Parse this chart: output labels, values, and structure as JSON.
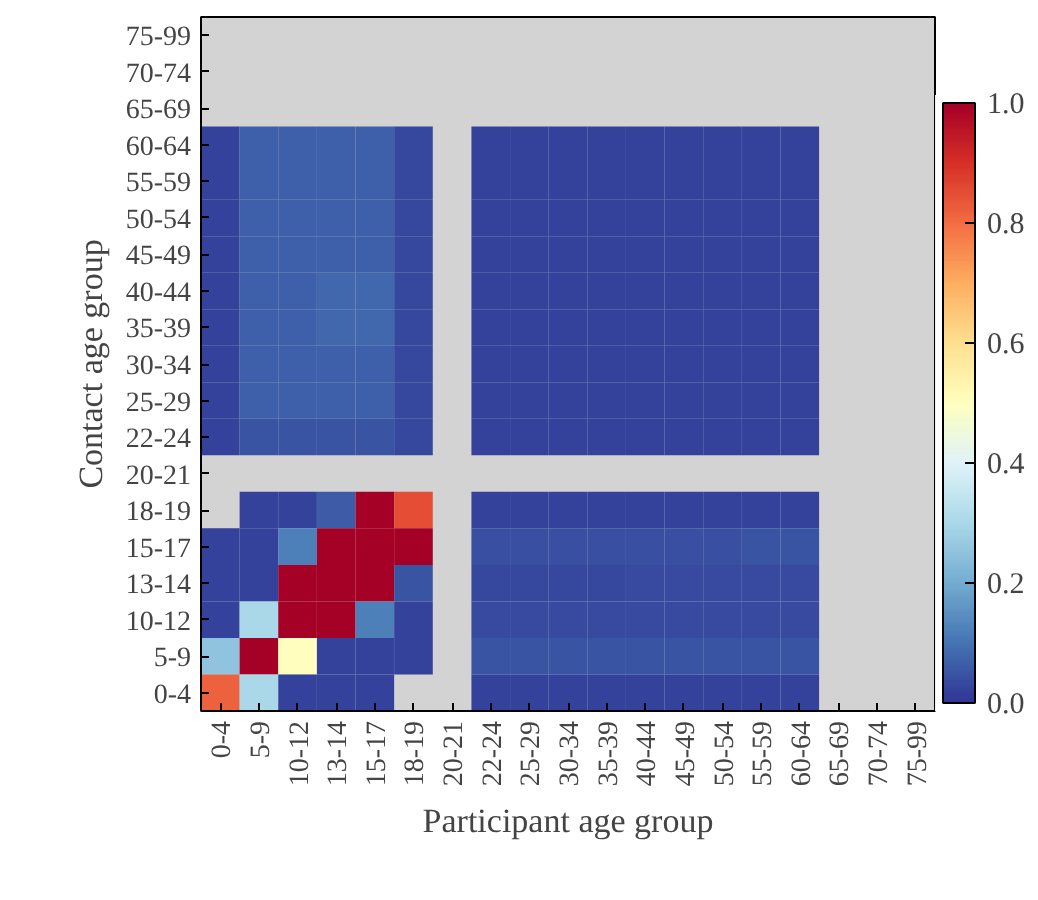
{
  "chart_data": {
    "type": "heatmap",
    "xlabel": "Participant age group",
    "ylabel": "Contact age group",
    "categories": [
      "0-4",
      "5-9",
      "10-12",
      "13-14",
      "15-17",
      "18-19",
      "20-21",
      "22-24",
      "25-29",
      "30-34",
      "35-39",
      "40-44",
      "45-49",
      "50-54",
      "55-59",
      "60-64",
      "65-69",
      "70-74",
      "75-99"
    ],
    "y_categories": [
      "75-99",
      "70-74",
      "65-69",
      "60-64",
      "55-59",
      "50-54",
      "45-49",
      "40-44",
      "35-39",
      "30-34",
      "25-29",
      "22-24",
      "20-21",
      "18-19",
      "15-17",
      "13-14",
      "10-12",
      "5-9",
      "0-4"
    ],
    "cells": [
      [
        null,
        null,
        null,
        null,
        null,
        null,
        null,
        null,
        null,
        null,
        null,
        null,
        null,
        null,
        null,
        null,
        null,
        null,
        null
      ],
      [
        null,
        null,
        null,
        null,
        null,
        null,
        null,
        null,
        null,
        null,
        null,
        null,
        null,
        null,
        null,
        null,
        null,
        null,
        null
      ],
      [
        null,
        null,
        null,
        null,
        null,
        null,
        null,
        null,
        null,
        null,
        null,
        null,
        null,
        null,
        null,
        null,
        null,
        null,
        null
      ],
      [
        0.02,
        0.07,
        0.07,
        0.07,
        0.07,
        0.03,
        null,
        0.02,
        0.02,
        0.02,
        0.02,
        0.02,
        0.02,
        0.02,
        0.02,
        0.02,
        null,
        null,
        null
      ],
      [
        0.02,
        0.07,
        0.07,
        0.07,
        0.07,
        0.03,
        null,
        0.02,
        0.02,
        0.02,
        0.02,
        0.02,
        0.02,
        0.02,
        0.02,
        0.02,
        null,
        null,
        null
      ],
      [
        0.02,
        0.07,
        0.07,
        0.07,
        0.07,
        0.03,
        null,
        0.02,
        0.02,
        0.02,
        0.02,
        0.02,
        0.02,
        0.02,
        0.02,
        0.02,
        null,
        null,
        null
      ],
      [
        0.02,
        0.07,
        0.07,
        0.07,
        0.07,
        0.03,
        null,
        0.02,
        0.02,
        0.02,
        0.02,
        0.02,
        0.02,
        0.02,
        0.02,
        0.02,
        null,
        null,
        null
      ],
      [
        0.02,
        0.07,
        0.07,
        0.08,
        0.08,
        0.03,
        null,
        0.02,
        0.02,
        0.02,
        0.02,
        0.02,
        0.02,
        0.02,
        0.02,
        0.02,
        null,
        null,
        null
      ],
      [
        0.02,
        0.07,
        0.07,
        0.08,
        0.08,
        0.03,
        null,
        0.02,
        0.02,
        0.02,
        0.02,
        0.02,
        0.02,
        0.02,
        0.02,
        0.02,
        null,
        null,
        null
      ],
      [
        0.02,
        0.07,
        0.07,
        0.07,
        0.07,
        0.03,
        null,
        0.02,
        0.02,
        0.02,
        0.02,
        0.02,
        0.02,
        0.02,
        0.02,
        0.02,
        null,
        null,
        null
      ],
      [
        0.02,
        0.07,
        0.07,
        0.07,
        0.07,
        0.03,
        null,
        0.02,
        0.02,
        0.02,
        0.02,
        0.02,
        0.02,
        0.02,
        0.02,
        0.02,
        null,
        null,
        null
      ],
      [
        0.02,
        0.05,
        0.05,
        0.05,
        0.05,
        0.03,
        null,
        0.02,
        0.02,
        0.02,
        0.02,
        0.02,
        0.02,
        0.02,
        0.02,
        0.02,
        null,
        null,
        null
      ],
      [
        null,
        null,
        null,
        null,
        null,
        null,
        null,
        null,
        null,
        null,
        null,
        null,
        null,
        null,
        null,
        null,
        null,
        null,
        null
      ],
      [
        null,
        0.02,
        0.02,
        0.06,
        1.0,
        0.85,
        null,
        0.02,
        0.02,
        0.02,
        0.02,
        0.02,
        0.02,
        0.02,
        0.02,
        0.02,
        null,
        null,
        null
      ],
      [
        0.02,
        0.02,
        0.12,
        1.0,
        1.0,
        1.0,
        null,
        0.04,
        0.04,
        0.04,
        0.04,
        0.04,
        0.04,
        0.04,
        0.05,
        0.05,
        null,
        null,
        null
      ],
      [
        0.02,
        0.02,
        1.0,
        1.0,
        1.0,
        0.05,
        null,
        0.03,
        0.03,
        0.03,
        0.03,
        0.035,
        0.035,
        0.035,
        0.035,
        0.035,
        null,
        null,
        null
      ],
      [
        0.02,
        0.3,
        1.0,
        1.0,
        0.12,
        0.02,
        null,
        0.035,
        0.035,
        0.035,
        0.035,
        0.035,
        0.035,
        0.035,
        0.035,
        0.035,
        null,
        null,
        null
      ],
      [
        0.25,
        1.0,
        0.5,
        0.02,
        0.02,
        0.02,
        null,
        0.05,
        0.05,
        0.05,
        0.05,
        0.05,
        0.05,
        0.05,
        0.05,
        0.05,
        null,
        null,
        null
      ],
      [
        0.82,
        0.3,
        0.02,
        0.02,
        0.02,
        null,
        null,
        0.02,
        0.02,
        0.02,
        0.02,
        0.02,
        0.02,
        0.02,
        0.02,
        0.02,
        null,
        null,
        null
      ]
    ],
    "clim": [
      0,
      1
    ],
    "cticks": [
      {
        "value": 0,
        "label": "0.0"
      },
      {
        "value": 0.2,
        "label": "0.2"
      },
      {
        "value": 0.4,
        "label": "0.4"
      },
      {
        "value": 0.6,
        "label": "0.6"
      },
      {
        "value": 0.8,
        "label": "0.8"
      },
      {
        "value": 1,
        "label": "1.0"
      }
    ]
  }
}
